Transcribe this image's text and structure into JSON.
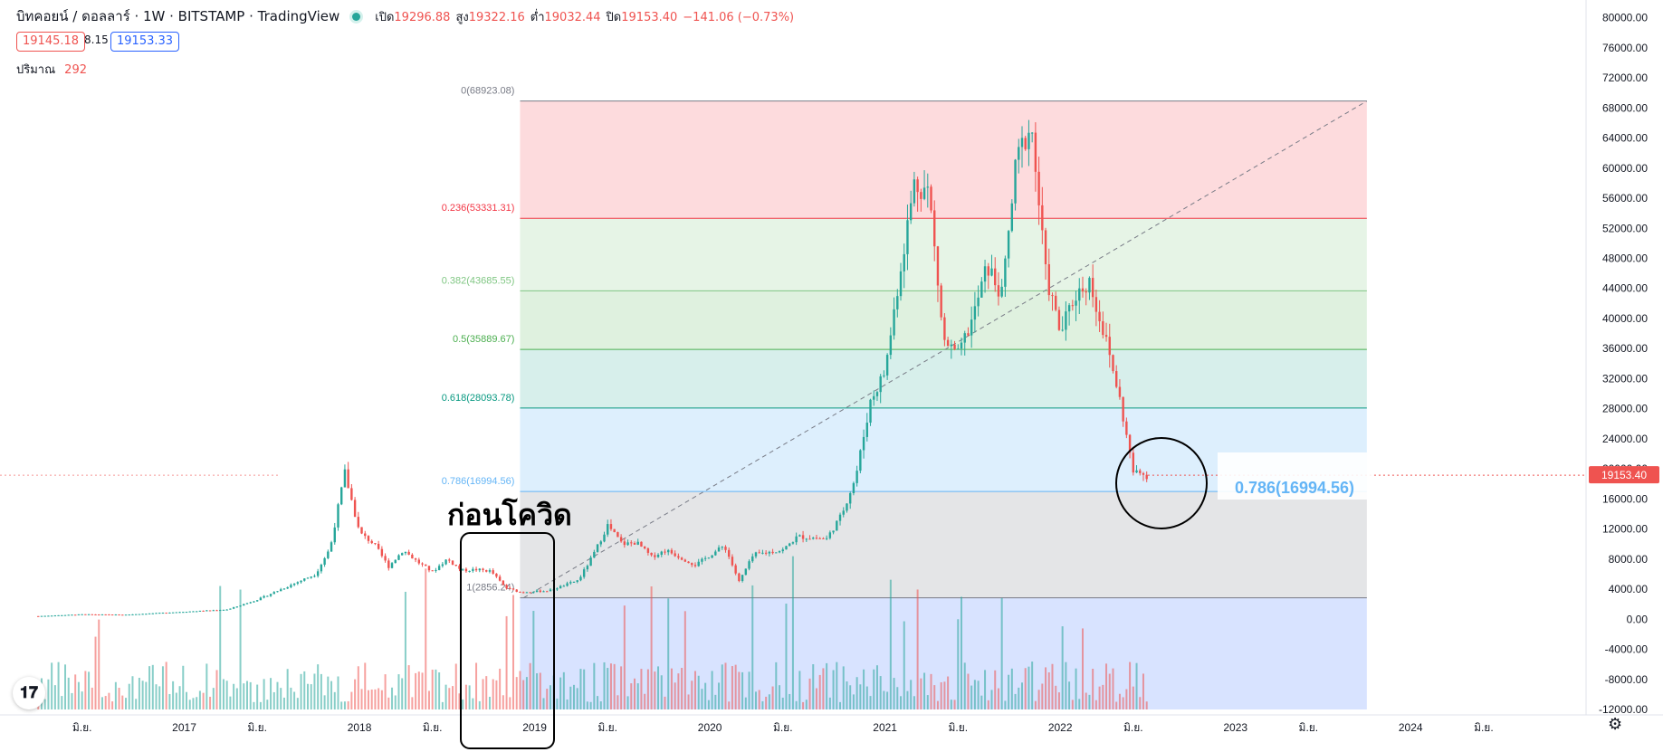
{
  "header": {
    "symbol": "บิทคอยน์ / ดอลลาร์ · 1W · BITSTAMP · TradingView",
    "open_label": "เปิด",
    "open": "19296.88",
    "high_label": "สูง",
    "high": "19322.16",
    "low_label": "ต่ำ",
    "low": "19032.44",
    "close_label": "ปิด",
    "close": "19153.40",
    "change": "−141.06 (−0.73%)"
  },
  "bid": "19145.18",
  "spread": "8.15",
  "ask": "19153.33",
  "volume": {
    "label": "ปริมาณ",
    "value": "292"
  },
  "colors": {
    "up": "#26a69a",
    "down": "#ef5350",
    "axis": "#131722",
    "fib_line": "#787b86"
  },
  "icons": {
    "logo": "tradingview-logo-icon",
    "settings": "gear-icon"
  },
  "chart_data": {
    "type": "candlestick",
    "x_ticks": [
      "มิ.ย.",
      "2017",
      "มิ.ย.",
      "2018",
      "มิ.ย.",
      "2019",
      "มิ.ย.",
      "2020",
      "มิ.ย.",
      "2021",
      "มิ.ย.",
      "2022",
      "มิ.ย.",
      "2023",
      "มิ.ย.",
      "2024",
      "มิ.ย."
    ],
    "x_tick_dates": [
      "2016-06",
      "2017-01",
      "2017-06",
      "2018-01",
      "2018-06",
      "2019-01",
      "2019-06",
      "2020-01",
      "2020-06",
      "2021-01",
      "2021-06",
      "2022-01",
      "2022-06",
      "2023-01",
      "2023-06",
      "2024-01",
      "2024-06"
    ],
    "y_ticks": [
      "80000.00",
      "76000.00",
      "72000.00",
      "68000.00",
      "64000.00",
      "60000.00",
      "56000.00",
      "52000.00",
      "48000.00",
      "44000.00",
      "40000.00",
      "36000.00",
      "32000.00",
      "28000.00",
      "24000.00",
      "20000.00",
      "16000.00",
      "12000.00",
      "8000.00",
      "4000.00",
      "0.00",
      "-4000.00",
      "-8000.00",
      "-12000.00"
    ],
    "ylim": [
      -12000,
      82000
    ],
    "last_price": "19153.40",
    "price_path": [
      [
        "2016-03",
        420
      ],
      [
        "2016-06",
        650
      ],
      [
        "2016-09",
        610
      ],
      [
        "2016-12",
        900
      ],
      [
        "2017-02",
        1100
      ],
      [
        "2017-04",
        1300
      ],
      [
        "2017-06",
        2600
      ],
      [
        "2017-08",
        4300
      ],
      [
        "2017-10",
        6000
      ],
      [
        "2017-11",
        9500
      ],
      [
        "2017-12",
        19500
      ],
      [
        "2018-01",
        11500
      ],
      [
        "2018-02",
        10000
      ],
      [
        "2018-03",
        7000
      ],
      [
        "2018-04",
        9200
      ],
      [
        "2018-05",
        7600
      ],
      [
        "2018-06",
        6300
      ],
      [
        "2018-07",
        8000
      ],
      [
        "2018-08",
        6500
      ],
      [
        "2018-09",
        6600
      ],
      [
        "2018-10",
        6400
      ],
      [
        "2018-11",
        4200
      ],
      [
        "2018-12",
        3600
      ],
      [
        "2019-02",
        3800
      ],
      [
        "2019-04",
        5200
      ],
      [
        "2019-05",
        8500
      ],
      [
        "2019-06",
        12500
      ],
      [
        "2019-07",
        10000
      ],
      [
        "2019-08",
        10200
      ],
      [
        "2019-09",
        8300
      ],
      [
        "2019-10",
        9200
      ],
      [
        "2019-12",
        7200
      ],
      [
        "2020-02",
        9800
      ],
      [
        "2020-03",
        5000
      ],
      [
        "2020-04",
        8600
      ],
      [
        "2020-06",
        9200
      ],
      [
        "2020-07",
        11000
      ],
      [
        "2020-09",
        10700
      ],
      [
        "2020-10",
        13800
      ],
      [
        "2020-11",
        19000
      ],
      [
        "2020-12",
        29000
      ],
      [
        "2021-01",
        33000
      ],
      [
        "2021-02",
        46000
      ],
      [
        "2021-03",
        58000
      ],
      [
        "2021-04",
        57000
      ],
      [
        "2021-05",
        37000
      ],
      [
        "2021-06",
        35000
      ],
      [
        "2021-07",
        40000
      ],
      [
        "2021-08",
        47000
      ],
      [
        "2021-09",
        43000
      ],
      [
        "2021-10",
        61000
      ],
      [
        "2021-11",
        66000
      ],
      [
        "2021-12",
        46000
      ],
      [
        "2022-01",
        38000
      ],
      [
        "2022-02",
        43000
      ],
      [
        "2022-03",
        45000
      ],
      [
        "2022-04",
        38000
      ],
      [
        "2022-05",
        30000
      ],
      [
        "2022-06",
        19500
      ],
      [
        "2022-07",
        19153
      ]
    ],
    "fib": {
      "start": "2018-12",
      "end": "2023-10",
      "levels": [
        {
          "label": "0(68923.08)",
          "value": 68923.08,
          "color": "#787b86"
        },
        {
          "label": "0.236(53331.31)",
          "value": 53331.31,
          "color": "#f23645"
        },
        {
          "label": "0.382(43685.55)",
          "value": 43685.55,
          "color": "#81c784"
        },
        {
          "label": "0.5(35889.67)",
          "value": 35889.67,
          "color": "#4caf50"
        },
        {
          "label": "0.618(28093.78)",
          "value": 28093.78,
          "color": "#089981"
        },
        {
          "label": "0.786(16994.56)",
          "value": 16994.56,
          "color": "#64b5f6"
        },
        {
          "label": "1(2856.24)",
          "value": 2856.24,
          "color": "#787b86"
        }
      ]
    },
    "zone_fills": [
      "rgba(242,54,69,0.18)",
      "rgba(129,199,132,0.20)",
      "rgba(76,175,80,0.18)",
      "rgba(8,153,129,0.16)",
      "rgba(100,181,246,0.22)",
      "rgba(120,123,134,0.20)",
      "rgba(41,98,255,0.18)"
    ],
    "annotations": {
      "pre_covid": "ก่อนโควิด",
      "fib_callout": "0.786(16994.56)"
    }
  }
}
